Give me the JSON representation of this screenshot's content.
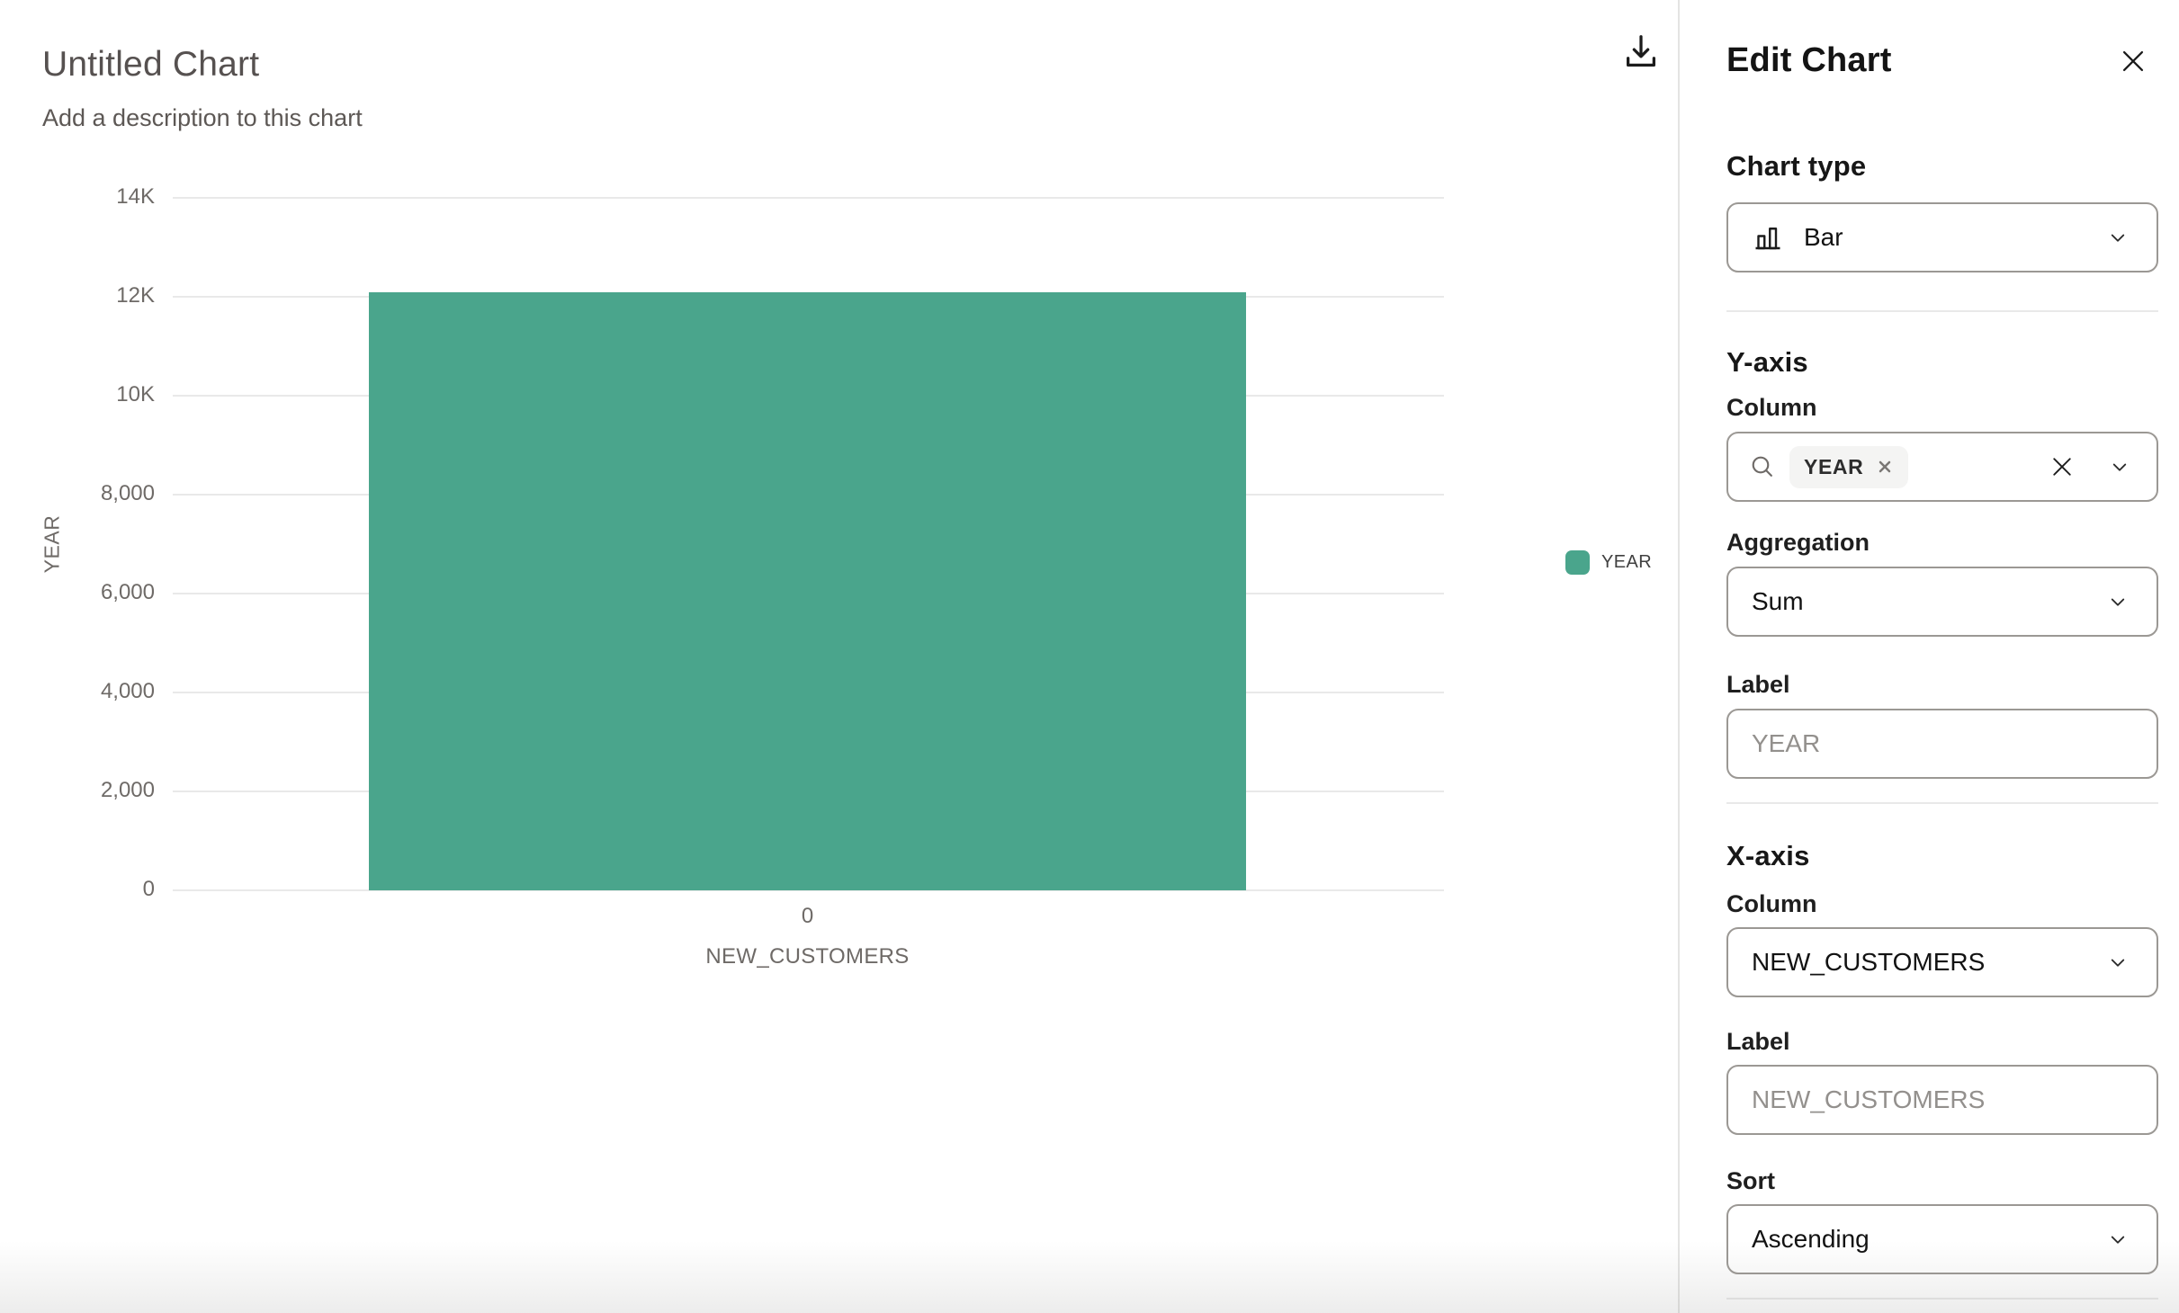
{
  "chart_header": {
    "title": "Untitled Chart",
    "description": "Add a description to this chart"
  },
  "toolbar": {
    "download_icon": "download"
  },
  "chart_data": {
    "type": "bar",
    "title": "Untitled Chart",
    "categories": [
      "0"
    ],
    "series": [
      {
        "name": "YEAR",
        "values": [
          12100
        ]
      }
    ],
    "xlabel": "NEW_CUSTOMERS",
    "ylabel": "YEAR",
    "ylim": [
      0,
      14000
    ],
    "ytick_labels": [
      "0",
      "2,000",
      "4,000",
      "6,000",
      "8,000",
      "10K",
      "12K",
      "14K"
    ],
    "grid": true,
    "bar_color": "#4aa58c",
    "legend": {
      "position": "right",
      "entries": [
        {
          "label": "YEAR",
          "color": "#4aa58c"
        }
      ]
    }
  },
  "panel": {
    "title": "Edit Chart",
    "close_icon": "close",
    "chart_type": {
      "heading": "Chart type",
      "icon": "bar-chart",
      "value": "Bar"
    },
    "y_axis": {
      "heading": "Y-axis",
      "column_label": "Column",
      "search_icon": "search",
      "selected_chips": [
        "YEAR"
      ],
      "aggregation_label": "Aggregation",
      "aggregation_value": "Sum",
      "label_label": "Label",
      "label_value": "",
      "label_placeholder": "YEAR"
    },
    "x_axis": {
      "heading": "X-axis",
      "column_label": "Column",
      "column_value": "NEW_CUSTOMERS",
      "label_label": "Label",
      "label_value": "",
      "label_placeholder": "NEW_CUSTOMERS",
      "sort_label": "Sort",
      "sort_value": "Ascending"
    }
  }
}
